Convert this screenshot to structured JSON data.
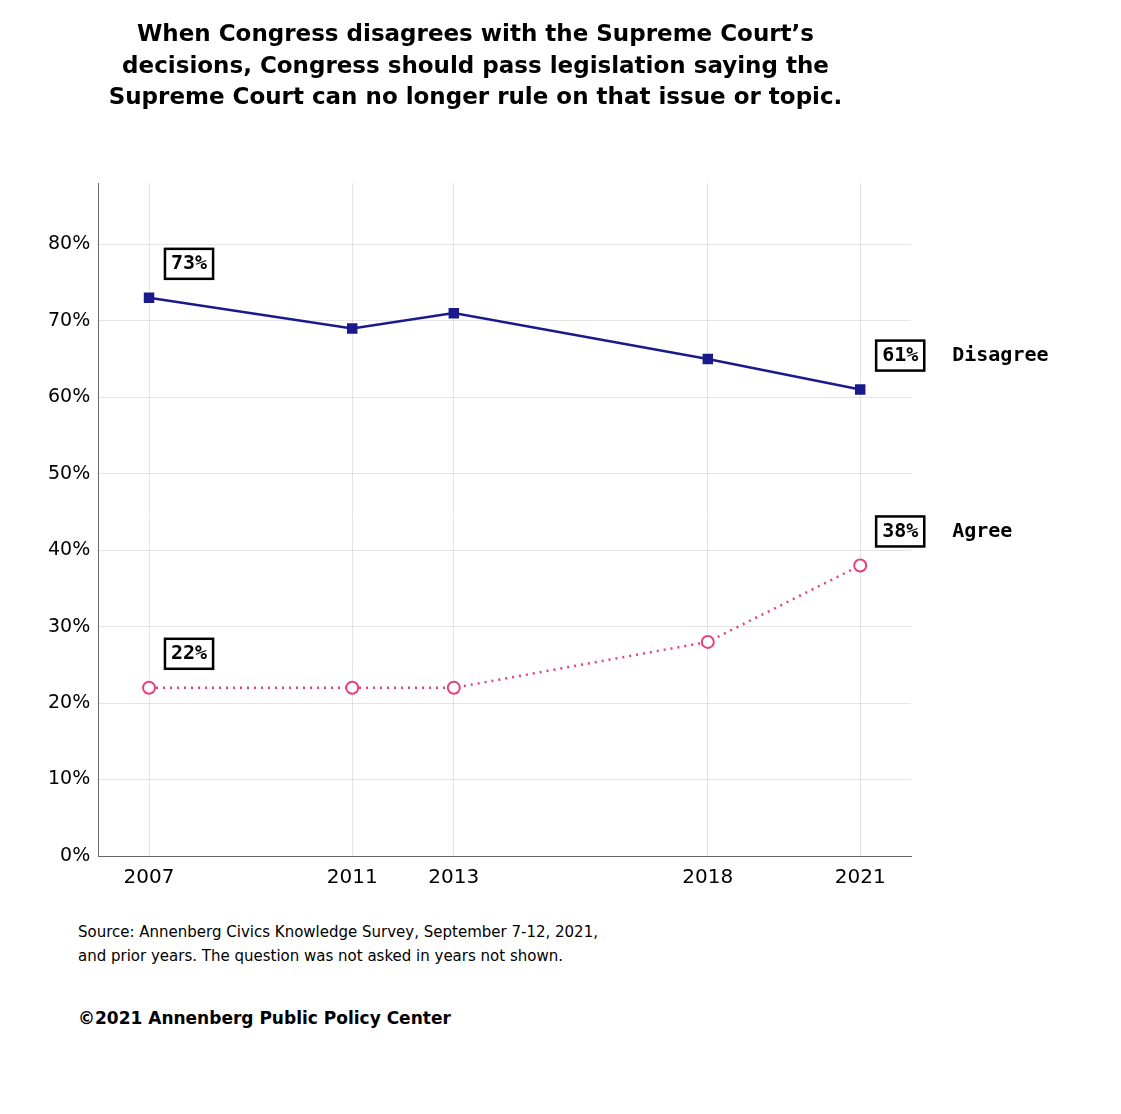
{
  "chart_data": {
    "type": "line",
    "title": [
      "When Congress disagrees with the Supreme Court’s",
      "decisions, Congress should pass legislation saying the",
      "Supreme Court can no longer rule on that issue or topic."
    ],
    "x": [
      2007,
      2011,
      2013,
      2018,
      2021
    ],
    "series": [
      {
        "name": "Disagree",
        "color": "#1a1a8c",
        "values": [
          73,
          69,
          71,
          65,
          61
        ],
        "marker": "square",
        "line_style": "solid"
      },
      {
        "name": "Agree",
        "color": "#e8407a",
        "values": [
          22,
          22,
          22,
          28,
          38
        ],
        "marker": "circle",
        "line_style": "dotted"
      }
    ],
    "xlim": [
      2006,
      2022
    ],
    "xticks": [
      2007,
      2011,
      2013,
      2018,
      2021
    ],
    "ylim": [
      0,
      88
    ],
    "yticks": [
      {
        "value": 0,
        "label": "0%"
      },
      {
        "value": 10,
        "label": "10%"
      },
      {
        "value": 20,
        "label": "20%"
      },
      {
        "value": 30,
        "label": "30%"
      },
      {
        "value": 40,
        "label": "40%"
      },
      {
        "value": 50,
        "label": "50%"
      },
      {
        "value": 60,
        "label": "60%"
      },
      {
        "value": 70,
        "label": "70%"
      },
      {
        "value": 80,
        "label": "80%"
      }
    ],
    "grid": true,
    "annotations": [
      {
        "text": "73%",
        "series": "Disagree",
        "x": 2007,
        "y": 73
      },
      {
        "text": "61%",
        "series": "Disagree",
        "x": 2021,
        "y": 61
      },
      {
        "text": "22%",
        "series": "Agree",
        "x": 2007,
        "y": 22
      },
      {
        "text": "38%",
        "series": "Agree",
        "x": 2021,
        "y": 38
      }
    ],
    "source": "Source: Annenberg Civics Knowledge Survey, September 7-12, 2021,\nand prior years. The question was not asked in years not shown.",
    "copyright": "©2021 Annenberg Public Policy Center"
  }
}
